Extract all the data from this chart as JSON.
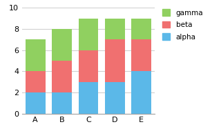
{
  "categories": [
    "A",
    "B",
    "C",
    "D",
    "E"
  ],
  "alpha": [
    2,
    2,
    3,
    3,
    4
  ],
  "beta": [
    2,
    3,
    3,
    4,
    3
  ],
  "gamma": [
    3,
    3,
    3,
    2,
    2
  ],
  "alpha_color": "#5BB8E8",
  "beta_color": "#F07070",
  "gamma_color": "#90D060",
  "ylim": [
    0,
    10
  ],
  "yticks": [
    0,
    2,
    4,
    6,
    8,
    10
  ],
  "background_color": "#FFFFFF",
  "grid_color": "#D0D0D0",
  "bar_width": 0.75,
  "figsize": [
    3.2,
    1.87
  ],
  "dpi": 100
}
